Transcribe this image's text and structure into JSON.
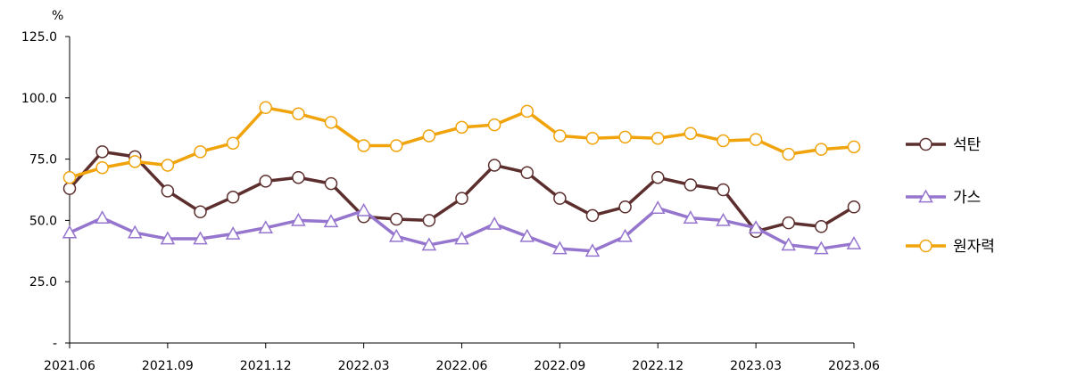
{
  "chart_data": {
    "type": "line",
    "unit_label": "%",
    "x": [
      "2021.06",
      "2021.07",
      "2021.08",
      "2021.09",
      "2021.10",
      "2021.11",
      "2021.12",
      "2022.01",
      "2022.02",
      "2022.03",
      "2022.04",
      "2022.05",
      "2022.06",
      "2022.07",
      "2022.08",
      "2022.09",
      "2022.10",
      "2022.11",
      "2022.12",
      "2023.01",
      "2023.02",
      "2023.03",
      "2023.04",
      "2023.05",
      "2023.06"
    ],
    "x_tick_labels": [
      "2021.06",
      "2021.09",
      "2021.12",
      "2022.03",
      "2022.06",
      "2022.09",
      "2022.12",
      "2023.03",
      "2023.06"
    ],
    "x_tick_every": 3,
    "y_tick_labels": [
      "-",
      "25.0",
      "50.0",
      "75.0",
      "100.0",
      "125.0"
    ],
    "y_ticks": [
      0,
      25,
      50,
      75,
      100,
      125
    ],
    "ylim": [
      0,
      125
    ],
    "grid": false,
    "legend_position": "right",
    "series": [
      {
        "name": "석탄",
        "marker": "circle",
        "color": "#5c2e2e",
        "values": [
          63,
          78,
          76,
          62,
          53.5,
          59.5,
          66,
          67.5,
          65,
          51.5,
          50.5,
          50,
          59,
          72.5,
          69.5,
          59,
          52,
          55.5,
          67.5,
          64.5,
          62.5,
          45.5,
          49,
          47.5,
          55.5
        ]
      },
      {
        "name": "가스",
        "marker": "triangle",
        "color": "#9575cd",
        "values": [
          45,
          51,
          45,
          42.5,
          42.5,
          44.5,
          47,
          50,
          49.5,
          54,
          43.5,
          40,
          42.5,
          48.5,
          43.5,
          38.5,
          37.5,
          43.5,
          55,
          51,
          50,
          47,
          40,
          38.5,
          40.5
        ]
      },
      {
        "name": "원자력",
        "marker": "circle",
        "color": "#f0a30a",
        "values": [
          67.5,
          71.5,
          74,
          72.5,
          78,
          81.5,
          96,
          93.5,
          90,
          80.5,
          80.5,
          84.5,
          88,
          89,
          94.5,
          84.5,
          83.5,
          84,
          83.5,
          85.5,
          82.5,
          83,
          77,
          79,
          80
        ]
      }
    ]
  }
}
